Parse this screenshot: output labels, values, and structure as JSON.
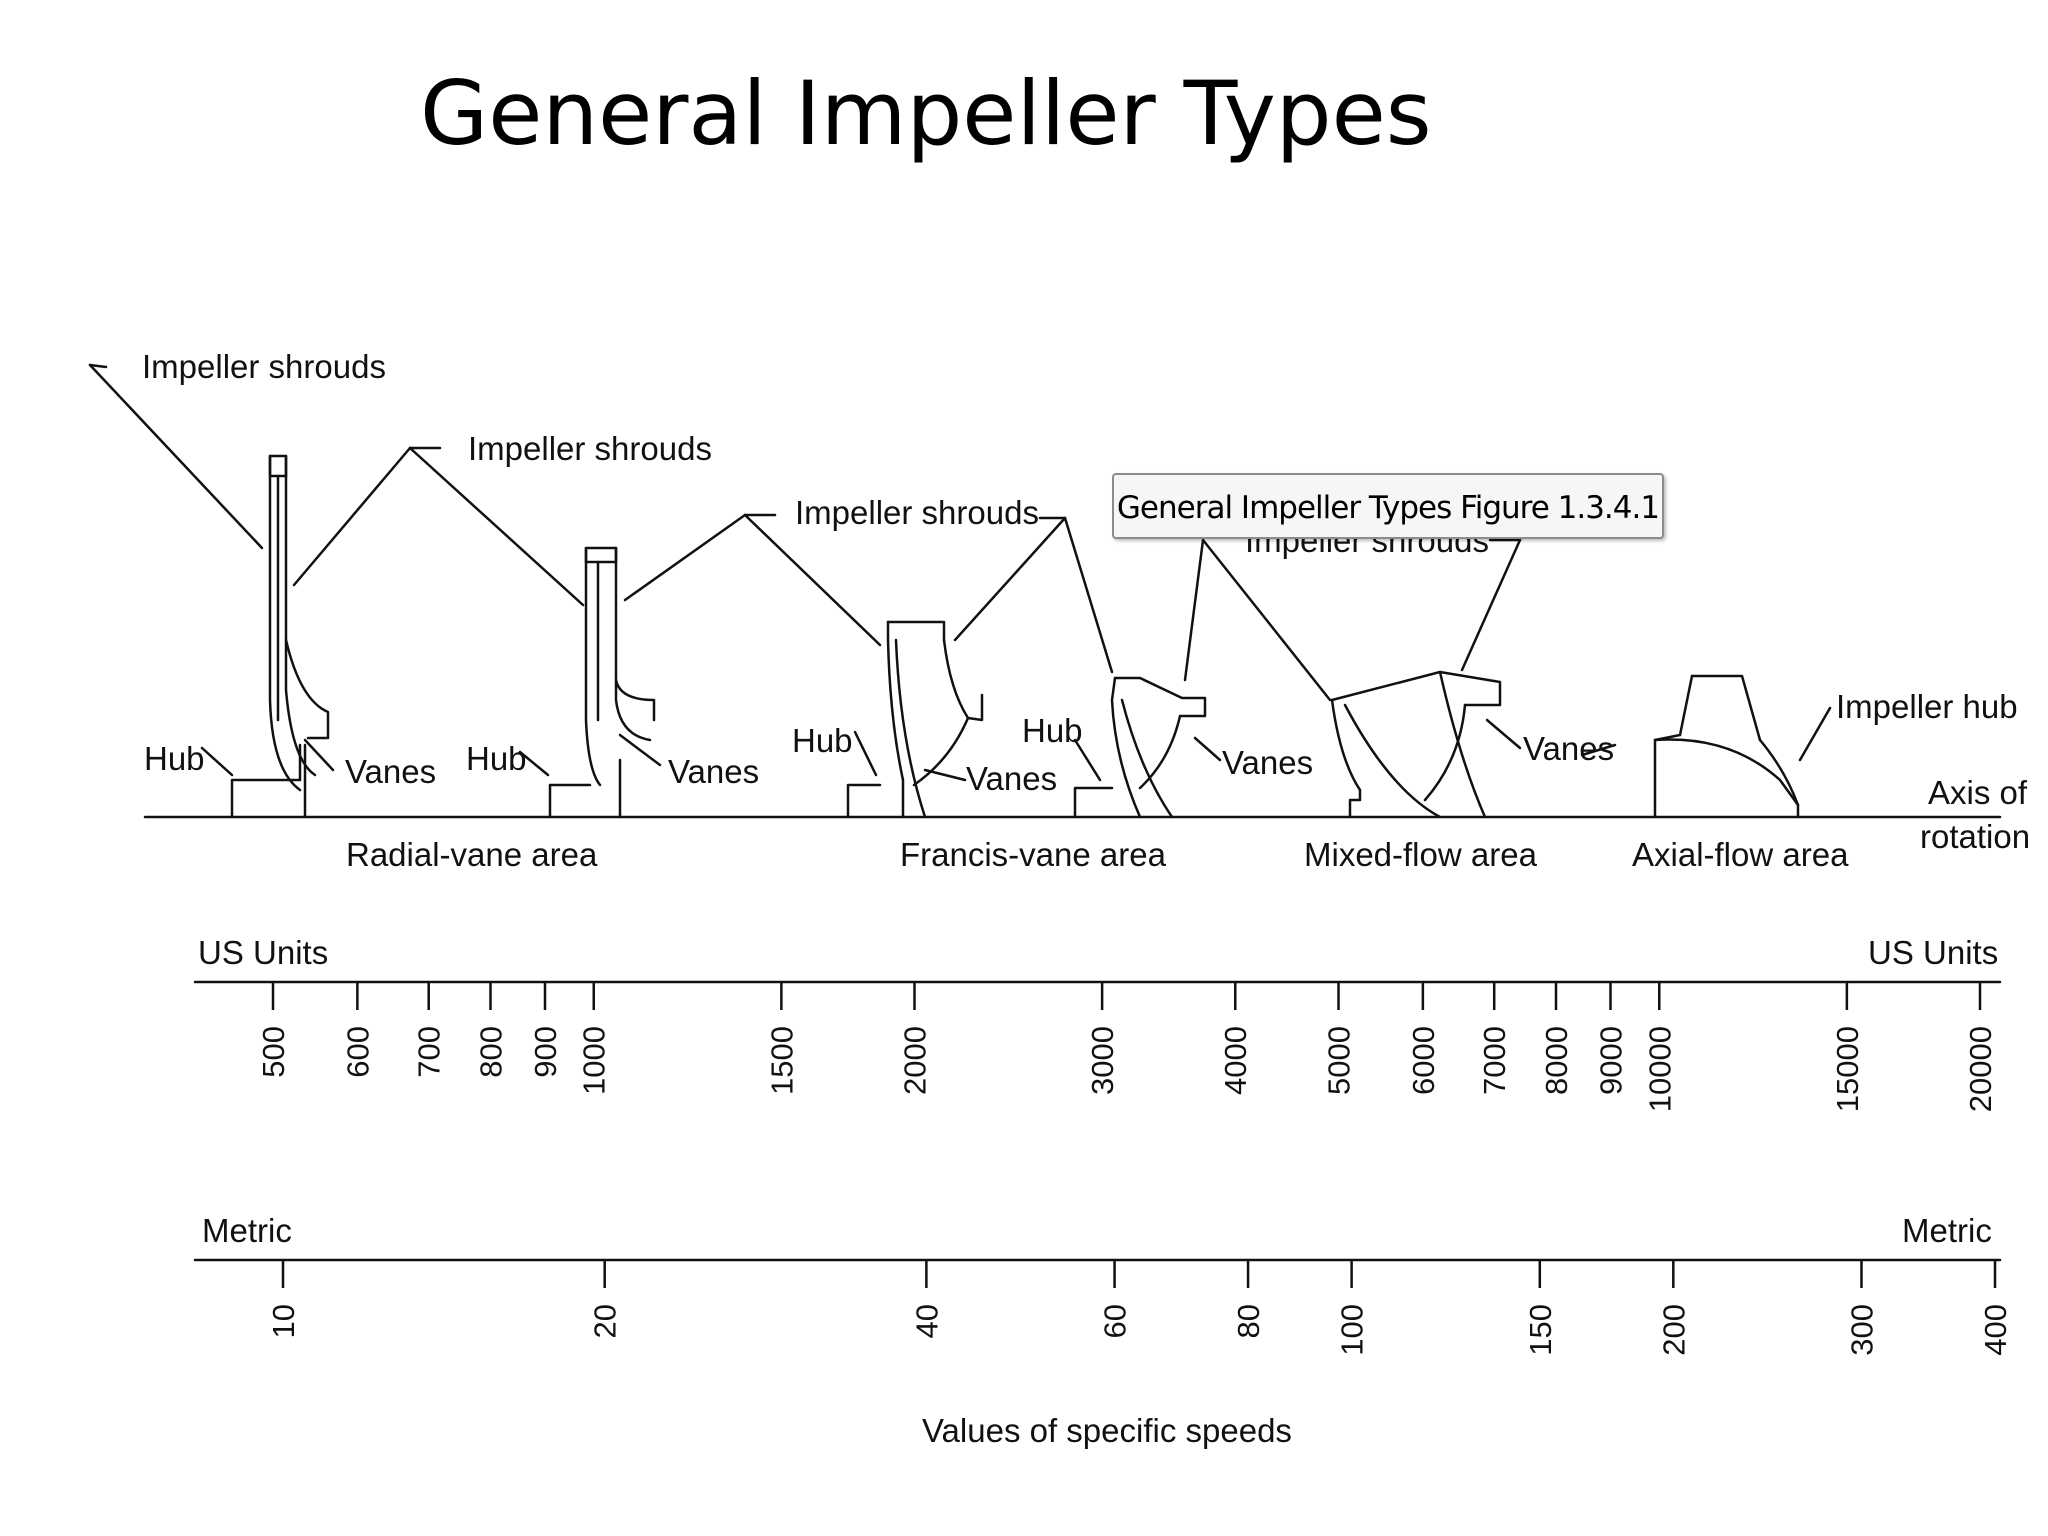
{
  "slide": {
    "title": "General Impeller Types"
  },
  "tooltip": {
    "text": "General Impeller Types Figure 1.3.4.1"
  },
  "labels": {
    "shrouds_1": "Impeller shrouds",
    "shrouds_2": "Impeller shrouds",
    "shrouds_3": "Impeller shrouds",
    "shrouds_4": "Impeller shrouds",
    "hub": "Hub",
    "vanes": "Vanes",
    "impeller_hub": "Impeller hub",
    "axis_line1": "Axis of",
    "axis_line2": "rotation"
  },
  "areas": {
    "radial": "Radial-vane area",
    "francis": "Francis-vane area",
    "mixed": "Mixed-flow area",
    "axial": "Axial-flow area"
  },
  "scales": {
    "us": {
      "label": "US Units",
      "ticks": [
        "500",
        "600",
        "700",
        "800",
        "900",
        "1000",
        "1500",
        "2000",
        "3000",
        "4000",
        "5000",
        "6000",
        "7000",
        "8000",
        "9000",
        "10000",
        "15000",
        "20000"
      ]
    },
    "metric": {
      "label": "Metric",
      "ticks": [
        "10",
        "20",
        "40",
        "60",
        "80",
        "100",
        "150",
        "200",
        "300",
        "400"
      ]
    },
    "caption": "Values of specific speeds"
  }
}
